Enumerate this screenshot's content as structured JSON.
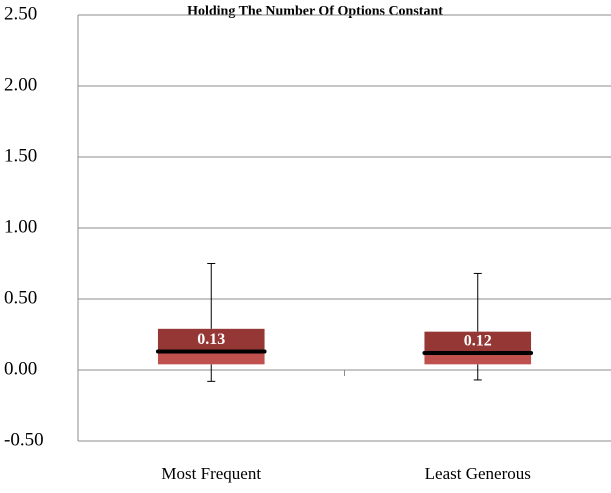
{
  "chart_data": {
    "type": "box",
    "title": "Holding The Number Of Options Constant",
    "categories": [
      "Most Frequent",
      "Least Generous"
    ],
    "whisker_low": [
      -0.08,
      -0.07
    ],
    "q1": [
      0.04,
      0.04
    ],
    "median": [
      0.13,
      0.12
    ],
    "q3": [
      0.29,
      0.27
    ],
    "whisker_high": [
      0.75,
      0.68
    ],
    "upper_color": "#953735",
    "lower_color": "#c0504d",
    "median_color": "#000000",
    "ylim": [
      -0.5,
      2.5
    ],
    "yticks": [
      {
        "value": -0.5,
        "label": "-0.50"
      },
      {
        "value": 0,
        "label": "0.00"
      },
      {
        "value": 0.5,
        "label": "0.50"
      },
      {
        "value": 1,
        "label": "1.00"
      },
      {
        "value": 1.5,
        "label": "1.50"
      },
      {
        "value": 2,
        "label": "2.00"
      },
      {
        "value": 2.5,
        "label": "2.50"
      }
    ],
    "grid": true
  }
}
